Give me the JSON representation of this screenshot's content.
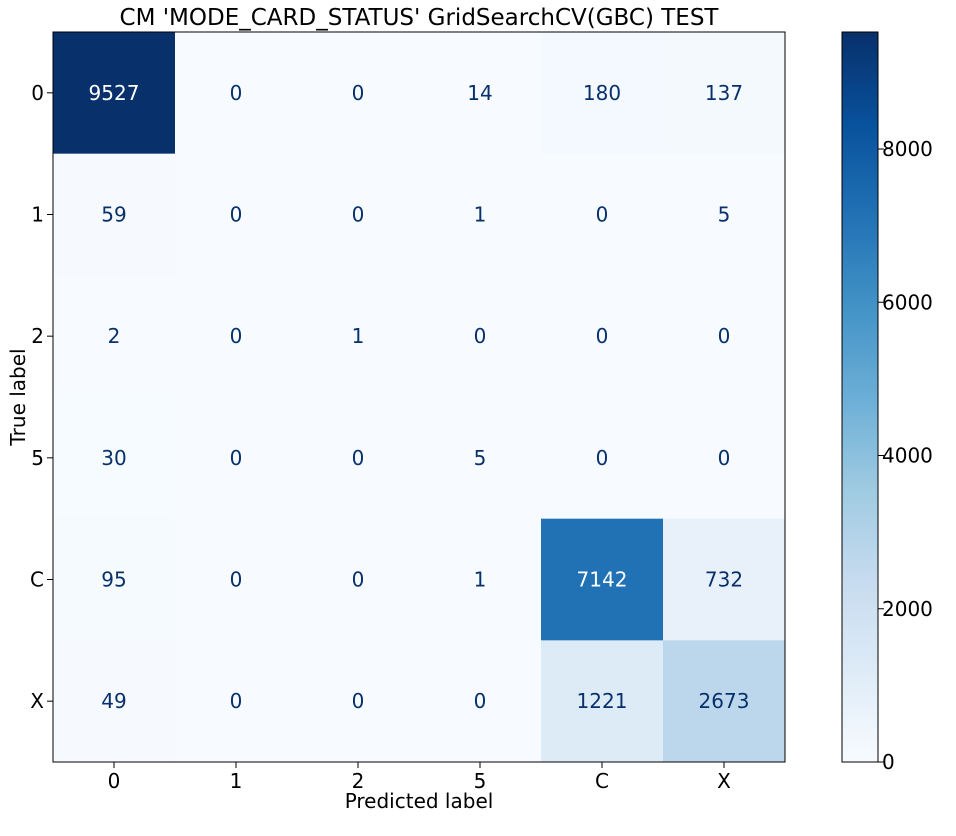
{
  "chart_data": {
    "type": "heatmap",
    "title": "CM 'MODE_CARD_STATUS' GridSearchCV(GBC) TEST",
    "xlabel": "Predicted label",
    "ylabel": "True label",
    "x_categories": [
      "0",
      "1",
      "2",
      "5",
      "C",
      "X"
    ],
    "y_categories": [
      "0",
      "1",
      "2",
      "5",
      "C",
      "X"
    ],
    "values": [
      [
        9527,
        0,
        0,
        14,
        180,
        137
      ],
      [
        59,
        0,
        0,
        1,
        0,
        5
      ],
      [
        2,
        0,
        1,
        0,
        0,
        0
      ],
      [
        30,
        0,
        0,
        5,
        0,
        0
      ],
      [
        95,
        0,
        0,
        1,
        7142,
        732
      ],
      [
        49,
        0,
        0,
        0,
        1221,
        2673
      ]
    ],
    "colormap": "Blues",
    "text_color_light": "#ffffff",
    "text_color_dark": "#08306b",
    "colorbar": {
      "min": 0,
      "max": 9527,
      "ticks": [
        0,
        2000,
        4000,
        6000,
        8000
      ]
    }
  }
}
